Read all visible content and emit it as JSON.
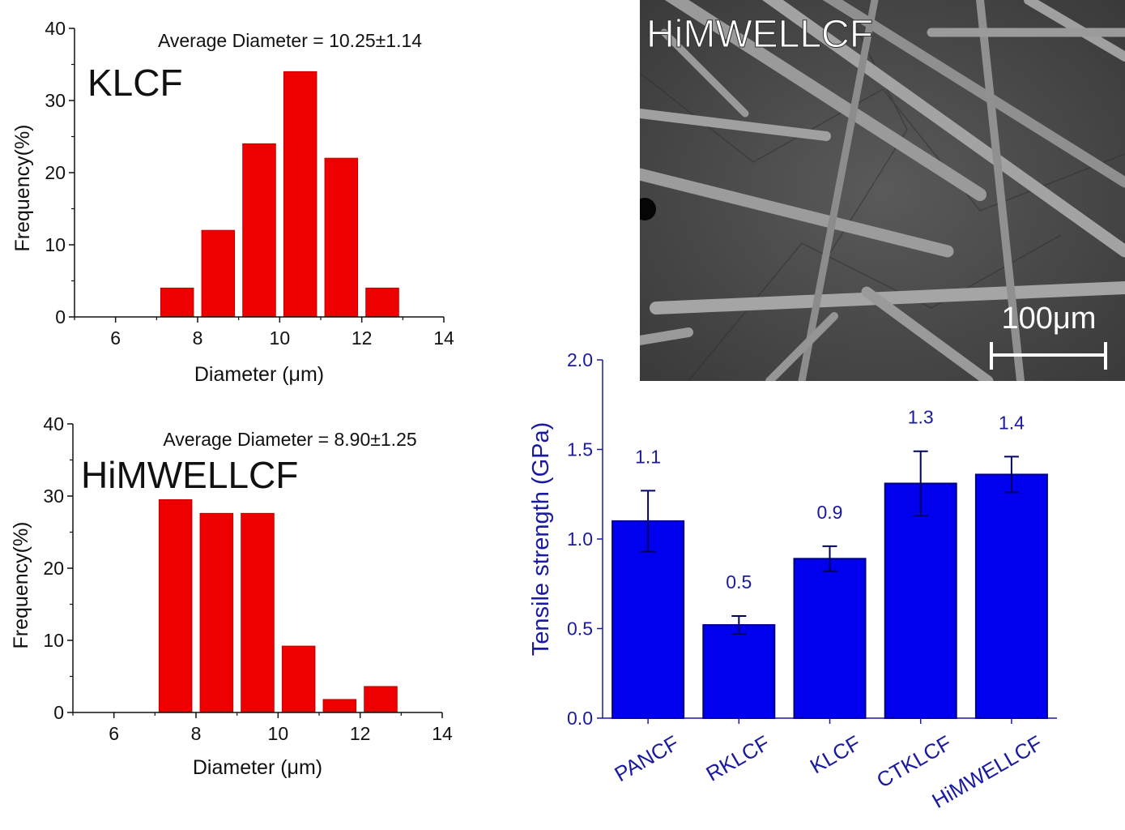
{
  "chart_data": [
    {
      "type": "bar",
      "panel_label": "KLCF",
      "annotation": "Average Diameter = 10.25±1.14",
      "xlabel": "Diameter (μm)",
      "ylabel": "Frequency(%)",
      "xlim": [
        5,
        14
      ],
      "ylim": [
        0,
        40
      ],
      "x_ticks": [
        "6",
        "8",
        "10",
        "12",
        "14"
      ],
      "y_ticks": [
        "0",
        "10",
        "20",
        "30",
        "40"
      ],
      "bar_color": "#ee0000",
      "bins": [
        {
          "start": 7.1,
          "end": 7.9,
          "value": 4
        },
        {
          "start": 8.1,
          "end": 8.9,
          "value": 12
        },
        {
          "start": 9.1,
          "end": 9.9,
          "value": 24
        },
        {
          "start": 10.1,
          "end": 10.9,
          "value": 34
        },
        {
          "start": 11.1,
          "end": 11.9,
          "value": 22
        },
        {
          "start": 12.1,
          "end": 12.9,
          "value": 4
        }
      ]
    },
    {
      "type": "bar",
      "panel_label": "HiMWELLCF",
      "annotation": "Average Diameter = 8.90±1.25",
      "xlabel": "Diameter (μm)",
      "ylabel": "Frequency(%)",
      "xlim": [
        5,
        14
      ],
      "ylim": [
        0,
        40
      ],
      "x_ticks": [
        "6",
        "8",
        "10",
        "12",
        "14"
      ],
      "y_ticks": [
        "0",
        "10",
        "20",
        "30",
        "40"
      ],
      "bar_color": "#ee0000",
      "bins": [
        {
          "start": 7.1,
          "end": 7.9,
          "value": 29.5
        },
        {
          "start": 8.1,
          "end": 8.9,
          "value": 27.6
        },
        {
          "start": 9.1,
          "end": 9.9,
          "value": 27.6
        },
        {
          "start": 10.1,
          "end": 10.9,
          "value": 9.2
        },
        {
          "start": 11.1,
          "end": 11.9,
          "value": 1.8
        },
        {
          "start": 12.1,
          "end": 12.9,
          "value": 3.6
        }
      ]
    },
    {
      "type": "bar",
      "ylabel": "Tensile strength (GPa)",
      "ylim": [
        0,
        2.0
      ],
      "y_ticks": [
        "0.0",
        "0.5",
        "1.0",
        "1.5",
        "2.0"
      ],
      "bar_color": "#0000ee",
      "axis_color": "#1a1aa0",
      "categories": [
        "PANCF",
        "RKLCF",
        "KLCF",
        "CTKLCF",
        "HiMWELLCF"
      ],
      "values": [
        1.1,
        0.52,
        0.89,
        1.31,
        1.36
      ],
      "errors": [
        0.17,
        0.05,
        0.07,
        0.18,
        0.1
      ],
      "value_labels": [
        "1.1",
        "0.5",
        "0.9",
        "1.3",
        "1.4"
      ]
    }
  ],
  "sem_image": {
    "label": "HiMWELLCF",
    "scale_bar": "100μm"
  }
}
